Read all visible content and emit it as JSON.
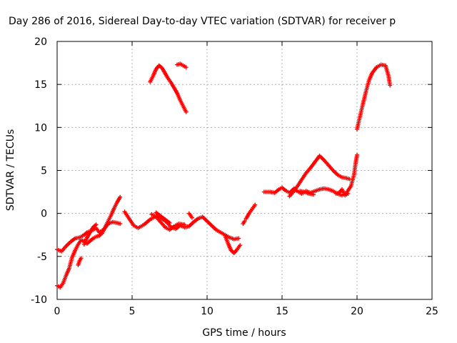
{
  "chart_data": {
    "type": "scatter",
    "title": "Day 286 of 2016, Sidereal Day-to-day VTEC variation (SDTVAR) for receiver p",
    "xlabel": "GPS time / hours",
    "ylabel": "SDTVAR / TECUs",
    "xlim": [
      0,
      25
    ],
    "ylim": [
      -10,
      20
    ],
    "xticks": [
      "0",
      "5",
      "10",
      "15",
      "20",
      "25"
    ],
    "yticks": [
      "-10",
      "-5",
      "0",
      "5",
      "10",
      "15",
      "20"
    ],
    "grid": true,
    "marker": "+",
    "color": "#ff0000",
    "segments": [
      [
        [
          0.0,
          -4.2
        ],
        [
          0.3,
          -4.4
        ],
        [
          0.6,
          -3.8
        ],
        [
          0.9,
          -3.3
        ],
        [
          1.2,
          -2.9
        ],
        [
          1.5,
          -2.8
        ],
        [
          1.8,
          -2.5
        ],
        [
          2.0,
          -2.2
        ],
        [
          2.3,
          -2.0
        ],
        [
          2.6,
          -1.7
        ],
        [
          2.8,
          -2.2
        ],
        [
          3.1,
          -1.9
        ],
        [
          3.4,
          -1.2
        ],
        [
          3.7,
          -1.0
        ],
        [
          4.0,
          -1.1
        ],
        [
          4.2,
          -1.2
        ]
      ],
      [
        [
          0.0,
          -8.4
        ],
        [
          0.2,
          -8.6
        ],
        [
          0.4,
          -8.1
        ],
        [
          0.6,
          -7.2
        ],
        [
          0.8,
          -6.4
        ],
        [
          1.0,
          -5.1
        ],
        [
          1.2,
          -4.3
        ],
        [
          1.4,
          -3.6
        ],
        [
          1.6,
          -3.1
        ],
        [
          1.8,
          -3.2
        ],
        [
          2.0,
          -3.5
        ],
        [
          2.2,
          -3.2
        ],
        [
          2.4,
          -2.9
        ],
        [
          2.6,
          -2.7
        ],
        [
          2.8,
          -2.6
        ],
        [
          3.0,
          -2.3
        ],
        [
          3.2,
          -1.6
        ],
        [
          3.4,
          -0.9
        ],
        [
          3.6,
          -0.2
        ],
        [
          3.8,
          0.6
        ],
        [
          4.0,
          1.3
        ],
        [
          4.2,
          1.9
        ]
      ],
      [
        [
          1.4,
          -6.0
        ],
        [
          1.5,
          -5.5
        ],
        [
          1.6,
          -5.2
        ]
      ],
      [
        [
          1.8,
          -3.6
        ],
        [
          2.0,
          -2.8
        ],
        [
          2.2,
          -2.2
        ],
        [
          2.4,
          -1.6
        ],
        [
          2.6,
          -1.3
        ]
      ],
      [
        [
          4.5,
          0.2
        ],
        [
          4.8,
          -0.6
        ],
        [
          5.1,
          -1.4
        ],
        [
          5.4,
          -1.7
        ],
        [
          5.8,
          -1.3
        ],
        [
          6.2,
          -0.7
        ],
        [
          6.6,
          -0.3
        ],
        [
          7.0,
          -0.6
        ],
        [
          7.3,
          -1.0
        ],
        [
          7.6,
          -1.6
        ],
        [
          7.9,
          -1.8
        ],
        [
          8.2,
          -1.4
        ],
        [
          8.5,
          -1.6
        ],
        [
          8.8,
          -1.5
        ],
        [
          9.1,
          -1.0
        ],
        [
          9.4,
          -0.6
        ],
        [
          9.7,
          -0.4
        ],
        [
          10.0,
          -0.9
        ],
        [
          10.3,
          -1.4
        ],
        [
          10.6,
          -1.9
        ],
        [
          10.9,
          -2.2
        ],
        [
          11.2,
          -2.5
        ],
        [
          11.5,
          -2.8
        ],
        [
          11.8,
          -3.0
        ],
        [
          12.1,
          -2.9
        ]
      ],
      [
        [
          6.3,
          -0.1
        ],
        [
          6.6,
          -0.4
        ],
        [
          6.9,
          -1.0
        ],
        [
          7.2,
          -1.6
        ],
        [
          7.5,
          -1.9
        ],
        [
          7.8,
          -1.5
        ],
        [
          8.1,
          -1.2
        ],
        [
          8.5,
          -1.3
        ]
      ],
      [
        [
          6.6,
          0.1
        ],
        [
          6.9,
          -0.3
        ],
        [
          7.2,
          -0.7
        ],
        [
          7.5,
          -1.1
        ]
      ],
      [
        [
          8.8,
          0.0
        ],
        [
          9.0,
          -0.5
        ]
      ],
      [
        [
          11.2,
          -2.6
        ],
        [
          11.4,
          -3.5
        ],
        [
          11.6,
          -4.3
        ],
        [
          11.8,
          -4.6
        ],
        [
          12.0,
          -4.2
        ],
        [
          12.2,
          -3.7
        ]
      ],
      [
        [
          12.6,
          -0.6
        ],
        [
          12.8,
          0.0
        ],
        [
          13.0,
          0.5
        ],
        [
          13.2,
          1.0
        ]
      ],
      [
        [
          12.4,
          -1.2
        ],
        [
          12.5,
          -0.9
        ]
      ],
      [
        [
          13.8,
          2.5
        ],
        [
          14.2,
          2.5
        ],
        [
          14.5,
          2.4
        ],
        [
          14.8,
          2.8
        ],
        [
          15.0,
          3.0
        ],
        [
          15.2,
          2.7
        ],
        [
          15.5,
          2.4
        ],
        [
          15.8,
          2.9
        ],
        [
          16.0,
          2.6
        ],
        [
          16.3,
          2.3
        ],
        [
          16.6,
          2.6
        ],
        [
          16.9,
          2.4
        ],
        [
          17.2,
          2.6
        ],
        [
          17.5,
          2.8
        ],
        [
          17.8,
          2.9
        ],
        [
          18.1,
          2.8
        ],
        [
          18.4,
          2.6
        ],
        [
          18.7,
          2.3
        ],
        [
          19.0,
          2.1
        ],
        [
          19.3,
          2.4
        ],
        [
          19.6,
          3.2
        ],
        [
          19.8,
          4.5
        ],
        [
          19.9,
          5.8
        ],
        [
          20.0,
          6.8
        ]
      ],
      [
        [
          15.5,
          2.0
        ],
        [
          15.8,
          2.6
        ],
        [
          16.0,
          3.1
        ],
        [
          16.3,
          3.9
        ],
        [
          16.6,
          4.7
        ],
        [
          16.9,
          5.3
        ],
        [
          17.2,
          6.0
        ],
        [
          17.5,
          6.7
        ],
        [
          17.8,
          6.2
        ],
        [
          18.1,
          5.6
        ],
        [
          18.4,
          5.0
        ],
        [
          18.7,
          4.5
        ],
        [
          19.0,
          4.2
        ],
        [
          19.3,
          4.1
        ],
        [
          19.5,
          4.0
        ]
      ],
      [
        [
          16.2,
          2.6
        ],
        [
          16.5,
          2.5
        ],
        [
          16.8,
          2.3
        ],
        [
          17.1,
          2.2
        ]
      ],
      [
        [
          18.6,
          2.3
        ],
        [
          18.8,
          2.4
        ],
        [
          19.0,
          2.8
        ],
        [
          19.2,
          2.1
        ],
        [
          19.4,
          2.3
        ]
      ],
      [
        [
          20.0,
          9.8
        ],
        [
          20.2,
          11.3
        ],
        [
          20.4,
          12.8
        ],
        [
          20.6,
          14.2
        ],
        [
          20.8,
          15.5
        ],
        [
          21.0,
          16.3
        ],
        [
          21.3,
          17.0
        ],
        [
          21.6,
          17.3
        ],
        [
          21.9,
          17.2
        ],
        [
          22.1,
          16.0
        ],
        [
          22.2,
          14.9
        ]
      ],
      [
        [
          6.2,
          15.3
        ],
        [
          6.4,
          16.0
        ],
        [
          6.6,
          16.8
        ],
        [
          6.8,
          17.2
        ],
        [
          7.0,
          16.9
        ],
        [
          7.2,
          16.3
        ],
        [
          7.4,
          15.7
        ],
        [
          7.6,
          15.2
        ],
        [
          7.8,
          14.6
        ],
        [
          8.0,
          14.0
        ],
        [
          8.2,
          13.2
        ],
        [
          8.4,
          12.5
        ],
        [
          8.6,
          11.8
        ]
      ],
      [
        [
          8.0,
          17.3
        ],
        [
          8.2,
          17.4
        ],
        [
          8.4,
          17.2
        ],
        [
          8.6,
          17.0
        ]
      ]
    ]
  }
}
